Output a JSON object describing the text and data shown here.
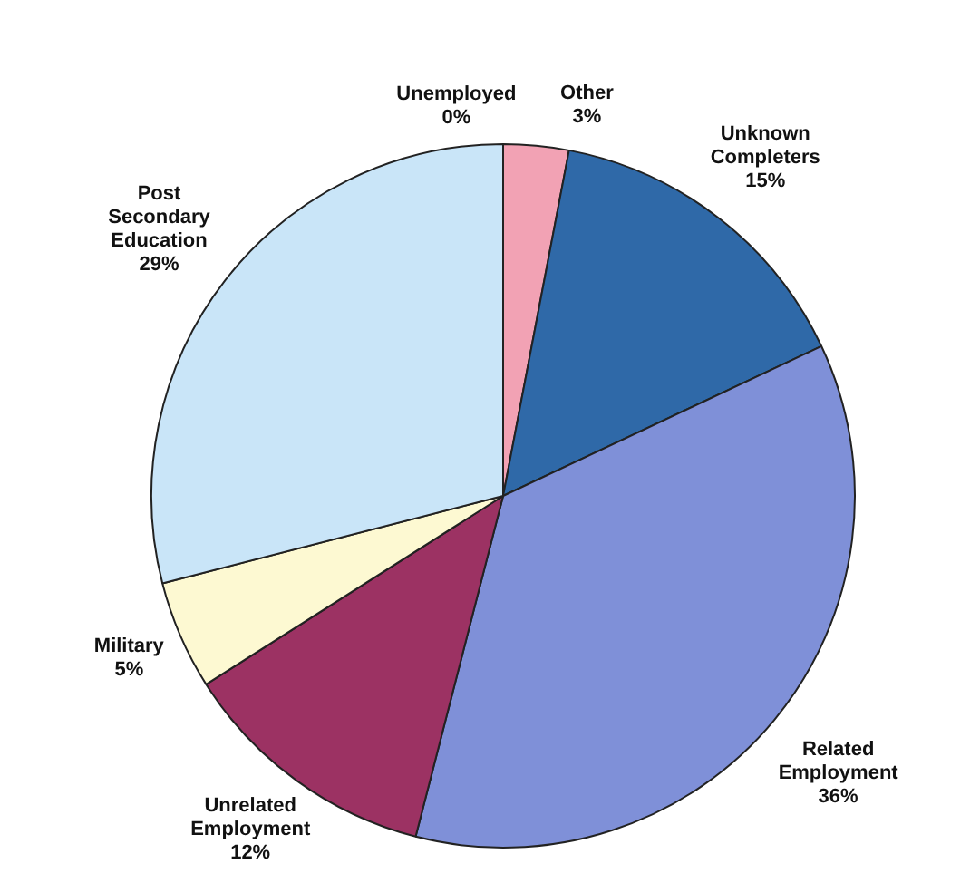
{
  "chart_data": {
    "type": "pie",
    "categories": [
      "Unemployed",
      "Other",
      "Unknown Completers",
      "Related Employment",
      "Unrelated Employment",
      "Military",
      "Post Secondary Education"
    ],
    "values": [
      0,
      3,
      15,
      36,
      12,
      5,
      29
    ],
    "colors": [
      "#5a5a9a",
      "#f2a2b4",
      "#2f69a8",
      "#7f90d8",
      "#9c3263",
      "#fdf9d2",
      "#c9e5f8"
    ],
    "value_labels": [
      "0%",
      "3%",
      "15%",
      "36%",
      "12%",
      "5%",
      "29%"
    ],
    "legend": false
  }
}
